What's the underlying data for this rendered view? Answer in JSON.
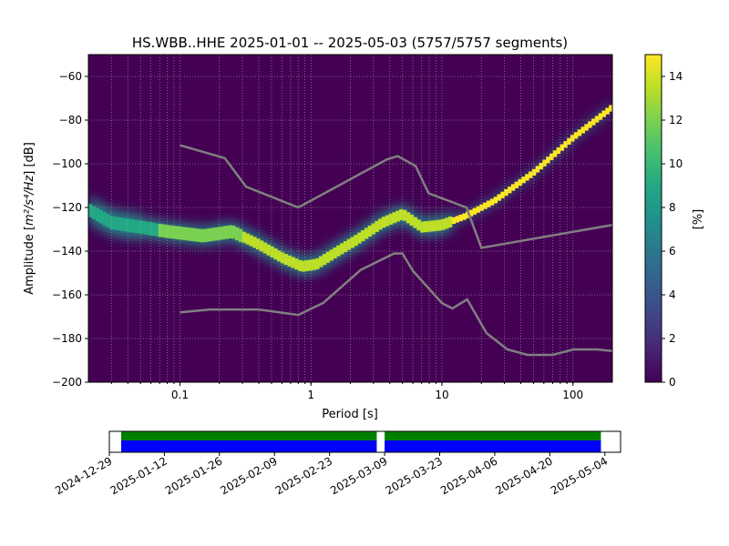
{
  "chart_data": [
    {
      "type": "heatmap",
      "title": "HS.WBB..HHE   2025-01-01 -- 2025-05-03  (5757/5757 segments)",
      "xlabel": "Period [s]",
      "ylabel_prefix": "Amplitude [",
      "ylabel_units": "m²/s⁴/Hz",
      "ylabel_suffix": "] [dB]",
      "x_scale": "log",
      "xlim": [
        0.02,
        200
      ],
      "ylim": [
        -200,
        -50
      ],
      "xticks": [
        {
          "value": 0.1,
          "label": "0.1"
        },
        {
          "value": 1,
          "label": "1"
        },
        {
          "value": 10,
          "label": "10"
        },
        {
          "value": 100,
          "label": "100"
        }
      ],
      "yticks": [
        -200,
        -180,
        -160,
        -140,
        -120,
        -100,
        -80,
        -60
      ],
      "grid": true,
      "colorbar": {
        "label": "[%]",
        "range": [
          0,
          15
        ],
        "ticks": [
          0,
          2,
          4,
          6,
          8,
          10,
          12,
          14
        ],
        "colormap": "viridis"
      },
      "background_color": "#440154",
      "noise_models": [
        {
          "name": "NHNM",
          "color": "#808080",
          "points": [
            [
              0.1,
              -91.5
            ],
            [
              0.22,
              -97.4
            ],
            [
              0.32,
              -110.5
            ],
            [
              0.8,
              -120
            ],
            [
              3.8,
              -98
            ],
            [
              4.6,
              -96.5
            ],
            [
              6.3,
              -101
            ],
            [
              7.9,
              -113.5
            ],
            [
              15.4,
              -120
            ],
            [
              20,
              -138.5
            ],
            [
              200,
              -128
            ]
          ]
        },
        {
          "name": "NLNM",
          "color": "#808080",
          "points": [
            [
              0.1,
              -168
            ],
            [
              0.17,
              -166.7
            ],
            [
              0.4,
              -166.7
            ],
            [
              0.8,
              -169.2
            ],
            [
              1.24,
              -163.7
            ],
            [
              2.4,
              -148.6
            ],
            [
              4.3,
              -141.1
            ],
            [
              5,
              -141.1
            ],
            [
              6,
              -149
            ],
            [
              10,
              -163.8
            ],
            [
              12,
              -166.2
            ],
            [
              15.6,
              -162.1
            ],
            [
              21.9,
              -177.5
            ],
            [
              31.6,
              -185
            ],
            [
              45,
              -187.5
            ],
            [
              70,
              -187.5
            ],
            [
              101,
              -185
            ],
            [
              154,
              -185
            ],
            [
              200,
              -185.7
            ]
          ]
        }
      ],
      "ppsd_mode": {
        "description_free": true,
        "points": [
          [
            0.02,
            -121
          ],
          [
            0.03,
            -127
          ],
          [
            0.05,
            -129
          ],
          [
            0.08,
            -131
          ],
          [
            0.15,
            -133
          ],
          [
            0.25,
            -131
          ],
          [
            0.4,
            -137
          ],
          [
            0.6,
            -143
          ],
          [
            0.85,
            -147
          ],
          [
            1.1,
            -146
          ],
          [
            1.5,
            -141
          ],
          [
            2.2,
            -135
          ],
          [
            3.5,
            -127
          ],
          [
            5,
            -123
          ],
          [
            7,
            -129
          ],
          [
            10,
            -128
          ],
          [
            15,
            -124
          ],
          [
            25,
            -117
          ],
          [
            50,
            -104
          ],
          [
            100,
            -88
          ],
          [
            200,
            -74
          ]
        ]
      }
    },
    {
      "type": "timeline",
      "xtick_labels": [
        "2024-12-29",
        "2025-01-12",
        "2025-01-26",
        "2025-02-09",
        "2025-02-23",
        "2025-03-09",
        "2025-03-23",
        "2025-04-06",
        "2025-04-20",
        "2025-05-04"
      ],
      "xlim": [
        "2024-12-29",
        "2025-05-08"
      ],
      "segments": [
        {
          "start": "2025-01-01",
          "end": "2025-03-07"
        },
        {
          "start": "2025-03-09",
          "end": "2025-05-03"
        }
      ],
      "colors": {
        "top": "#008000",
        "bottom": "#0000ff"
      }
    }
  ]
}
